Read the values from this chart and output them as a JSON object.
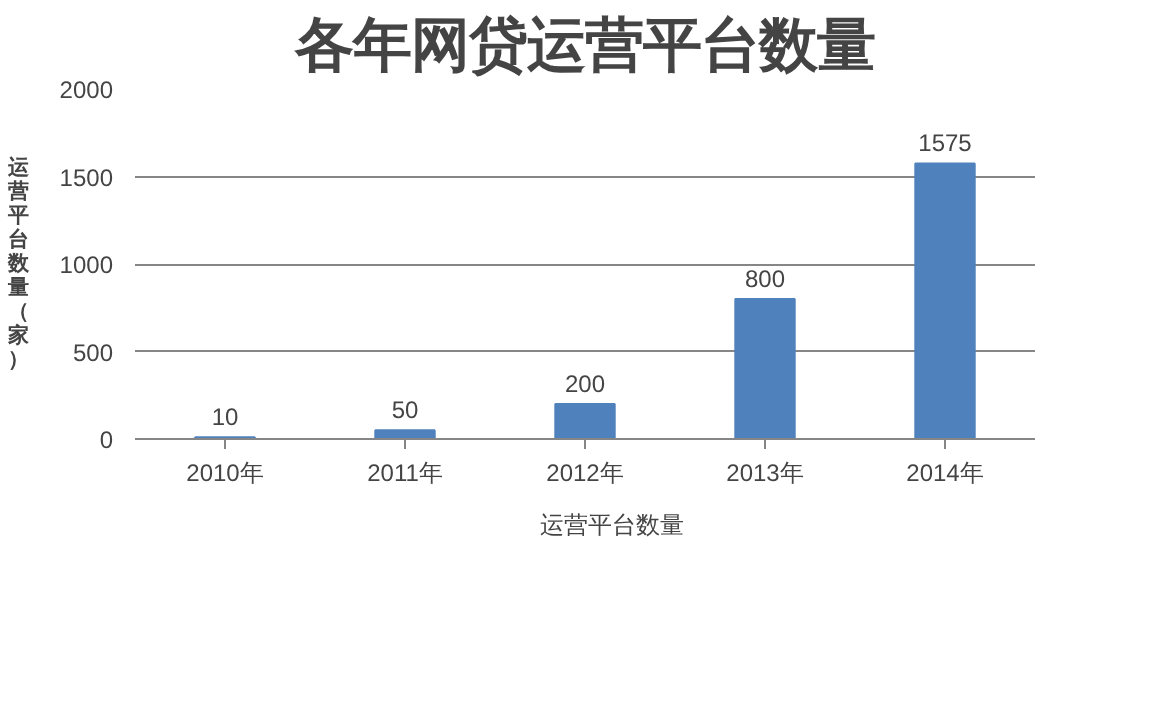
{
  "chart_data": {
    "type": "bar",
    "title": "各年网贷运营平台数量",
    "ylabel": "运营平台数量（家）",
    "categories": [
      "2010年",
      "2011年",
      "2012年",
      "2013年",
      "2014年"
    ],
    "series": [
      {
        "name": "运营平台数量",
        "color": "#4f81bd",
        "values": [
          10,
          50,
          200,
          800,
          1575
        ]
      }
    ],
    "ylim": [
      0,
      2000
    ],
    "yticks": [
      0,
      500,
      1000,
      1500,
      2000
    ],
    "grid": "y",
    "legend": "bottom",
    "data_labels": true
  }
}
